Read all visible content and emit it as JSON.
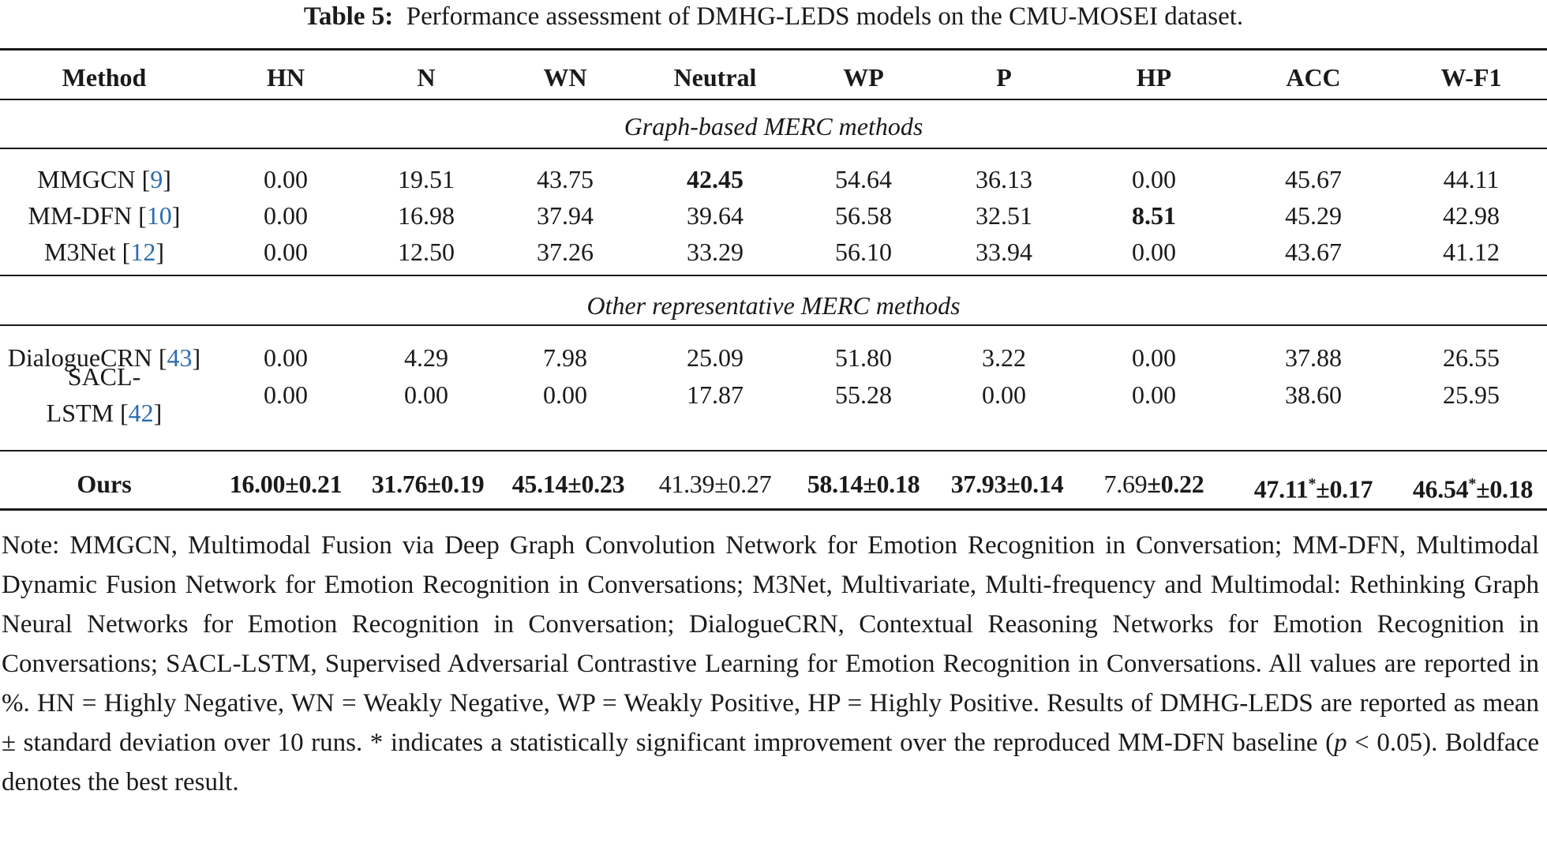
{
  "caption": {
    "label": "Table 5:",
    "text": "Performance assessment of DMHG-LEDS models on the CMU-MOSEI dataset."
  },
  "headers": [
    "Method",
    "HN",
    "N",
    "WN",
    "Neutral",
    "WP",
    "P",
    "HP",
    "ACC",
    "W-F1"
  ],
  "sections": [
    {
      "label": "Graph-based MERC methods",
      "rows": [
        {
          "method": "MMGCN [",
          "cite": "9",
          "end": "]",
          "values": [
            "0.00",
            "19.51",
            "43.75",
            "42.45",
            "54.64",
            "36.13",
            "0.00",
            "45.67",
            "44.11"
          ],
          "bold": [
            3
          ]
        },
        {
          "method": "MM-DFN [",
          "cite": "10",
          "end": "]",
          "values": [
            "0.00",
            "16.98",
            "37.94",
            "39.64",
            "56.58",
            "32.51",
            "8.51",
            "45.29",
            "42.98"
          ],
          "bold": [
            6
          ]
        },
        {
          "method": "M3Net [",
          "cite": "12",
          "end": "]",
          "values": [
            "0.00",
            "12.50",
            "37.26",
            "33.29",
            "56.10",
            "33.94",
            "0.00",
            "43.67",
            "41.12"
          ],
          "bold": []
        }
      ]
    },
    {
      "label": "Other representative MERC methods",
      "rows": [
        {
          "method": "DialogueCRN [",
          "cite": "43",
          "end": "]",
          "values": [
            "0.00",
            "4.29",
            "7.98",
            "25.09",
            "51.80",
            "3.22",
            "0.00",
            "37.88",
            "26.55"
          ],
          "bold": []
        },
        {
          "method_line1": "SACL-",
          "method_line2": "LSTM [",
          "cite": "42",
          "end": "]",
          "values": [
            "0.00",
            "0.00",
            "0.00",
            "17.87",
            "55.28",
            "0.00",
            "0.00",
            "38.60",
            "25.95"
          ],
          "bold": []
        }
      ]
    }
  ],
  "ours": {
    "method": "Ours",
    "values": [
      {
        "main": "16.00",
        "pm": "±0.21",
        "bold": true
      },
      {
        "main": "31.76",
        "pm": "±0.19",
        "bold": true
      },
      {
        "main": "45.14",
        "pm": "±0.23",
        "bold": true
      },
      {
        "main": "41.39",
        "pm": "±0.27",
        "bold": false
      },
      {
        "main": "58.14",
        "pm": "±0.18",
        "bold": true
      },
      {
        "main": "37.93",
        "pm": "±0.14",
        "bold": true
      },
      {
        "main": "7.69",
        "pm": "±0.22",
        "bold": false,
        "pm_bold": true
      },
      {
        "main": "47.11",
        "star": "*",
        "pm": "±0.17",
        "bold": true
      },
      {
        "main": "46.54",
        "star": "*",
        "pm": "±0.18",
        "bold": true
      }
    ]
  },
  "note": {
    "part1": "Note: MMGCN, Multimodal Fusion via Deep Graph Convolution Network for Emotion Recognition in Conversation; MM-DFN, Multimodal Dynamic Fusion Network for Emotion Recognition in Conversations; M3Net, Multivariate, Multi-frequency and Multimodal: Rethinking Graph Neural Networks for Emotion Recognition in Conversation; DialogueCRN, Contextual Reasoning Networks for Emotion Recognition in Conversations; SACL-LSTM, Supervised Adversarial Contrastive Learning for Emotion Recognition in Conversations. All values are reported in %. HN = Highly Negative, WN = Weakly Negative, WP = Weakly Positive, HP = Highly Positive. Results of DMHG-LEDS are reported as mean ± standard deviation over 10 runs. * indicates a statistically significant improvement over the reproduced MM-DFN baseline (",
    "p": "p",
    "part2": " < 0.05). Boldface denotes the best result."
  }
}
